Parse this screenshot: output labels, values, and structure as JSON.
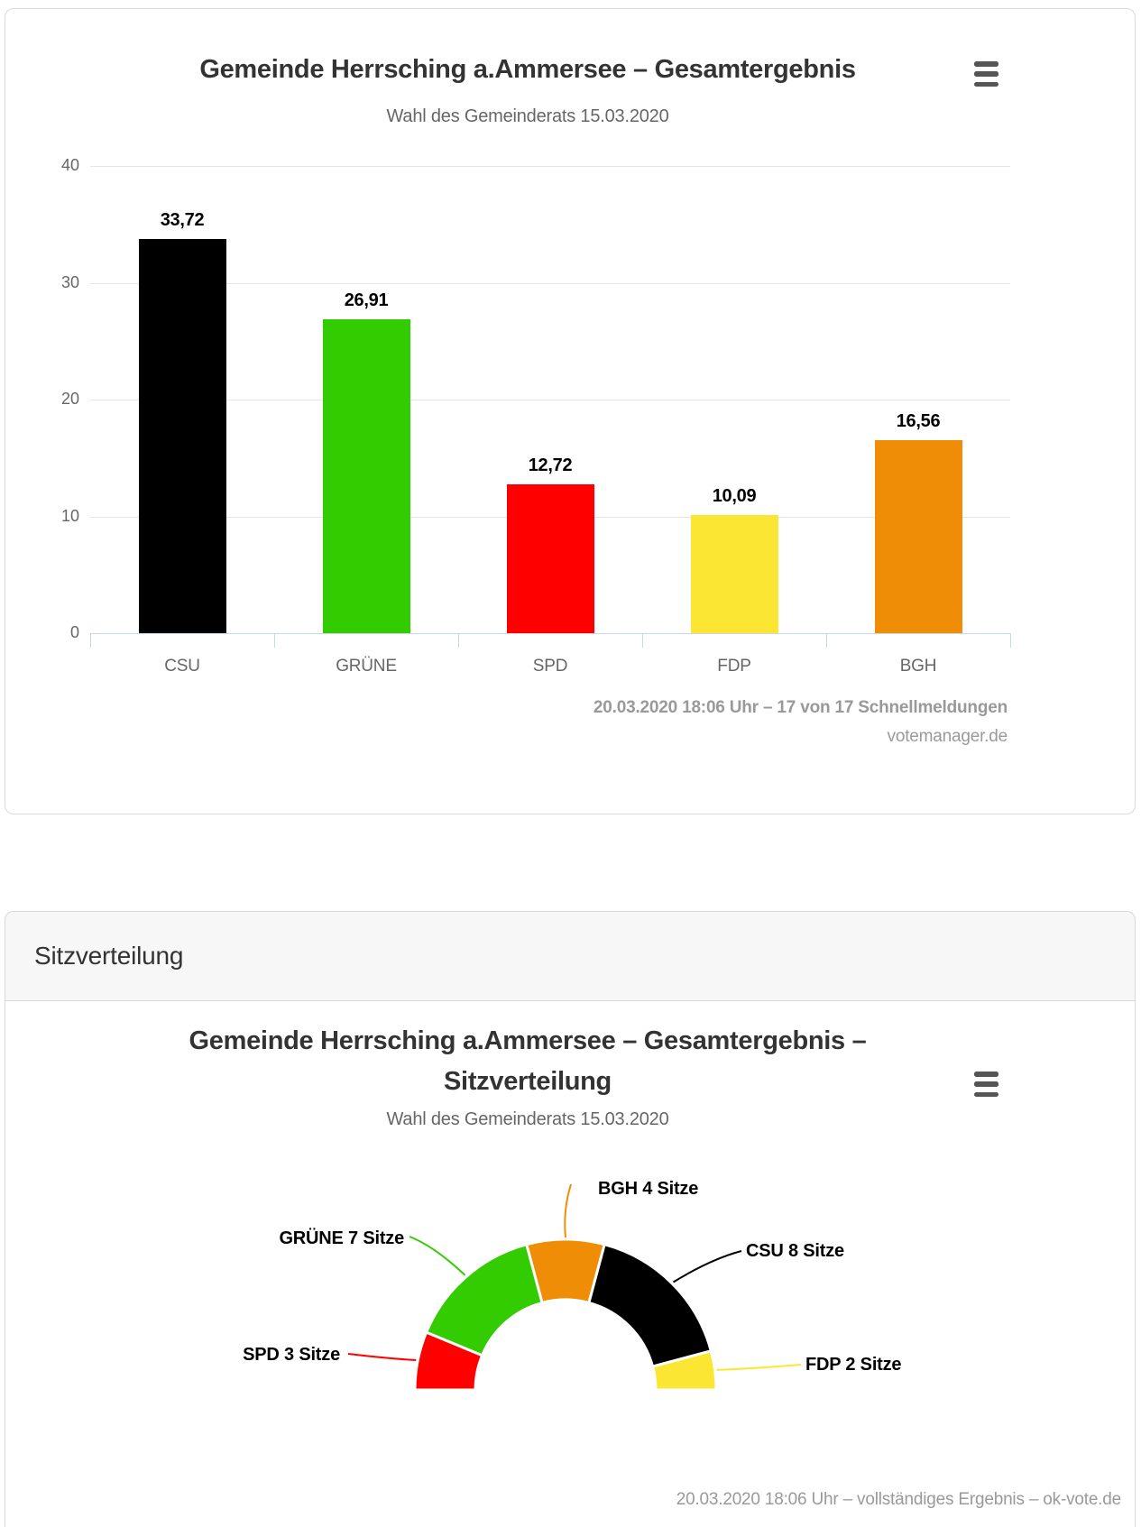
{
  "bar_card": {
    "title": "Gemeinde Herrsching a.Ammersee – Gesamtergebnis",
    "subtitle": "Wahl des Gemeinderats 15.03.2020",
    "credits_line1": "20.03.2020 18:06 Uhr – 17 von 17 Schnellmeldungen",
    "credits_line2": "votemanager.de",
    "menu_icon": "hamburger-menu"
  },
  "section_header": {
    "label": "Sitzverteilung"
  },
  "seats_card": {
    "title_line1": "Gemeinde Herrsching a.Ammersee – Gesamtergebnis –",
    "title_line2": "Sitzverteilung",
    "subtitle": "Wahl des Gemeinderats 15.03.2020",
    "credits": "20.03.2020 18:06 Uhr – vollständiges Ergebnis – ok-vote.de",
    "menu_icon": "hamburger-menu"
  },
  "theme": {
    "card_border": "#d9d9d9",
    "header_bg": "#f7f7f7",
    "gridline": "#e6e6e6",
    "axis_line": "#ccd6eb",
    "label_gray": "#666666",
    "credits_gray": "#999999"
  },
  "chart_data": [
    {
      "type": "bar",
      "title": "Gemeinde Herrsching a.Ammersee – Gesamtergebnis",
      "subtitle": "Wahl des Gemeinderats 15.03.2020",
      "categories": [
        "CSU",
        "GRÜNE",
        "SPD",
        "FDP",
        "BGH"
      ],
      "values": [
        33.72,
        26.91,
        12.72,
        10.09,
        16.56
      ],
      "value_labels": [
        "33,72",
        "26,91",
        "12,72",
        "10,09",
        "16,56"
      ],
      "colors": [
        "#000000",
        "#33cc00",
        "#ff0000",
        "#fbe733",
        "#ef8e06"
      ],
      "xlabel": "",
      "ylabel": "",
      "ylim": [
        0,
        40
      ],
      "yticks": [
        0,
        10,
        20,
        30,
        40
      ],
      "grid": true,
      "legend": "none"
    },
    {
      "type": "pie",
      "variant": "half-donut",
      "title": "Gemeinde Herrsching a.Ammersee – Gesamtergebnis – Sitzverteilung",
      "subtitle": "Wahl des Gemeinderats 15.03.2020",
      "total_seats": 24,
      "order": "left-to-right",
      "slices": [
        {
          "party": "SPD",
          "seats": 3,
          "label": "SPD 3 Sitze",
          "color": "#ff0000"
        },
        {
          "party": "GRÜNE",
          "seats": 7,
          "label": "GRÜNE 7 Sitze",
          "color": "#33cc00"
        },
        {
          "party": "BGH",
          "seats": 4,
          "label": "BGH 4 Sitze",
          "color": "#ef8e06"
        },
        {
          "party": "CSU",
          "seats": 8,
          "label": "CSU 8 Sitze",
          "color": "#000000"
        },
        {
          "party": "FDP",
          "seats": 2,
          "label": "FDP 2 Sitze",
          "color": "#fbe733"
        }
      ],
      "legend": "none"
    }
  ]
}
